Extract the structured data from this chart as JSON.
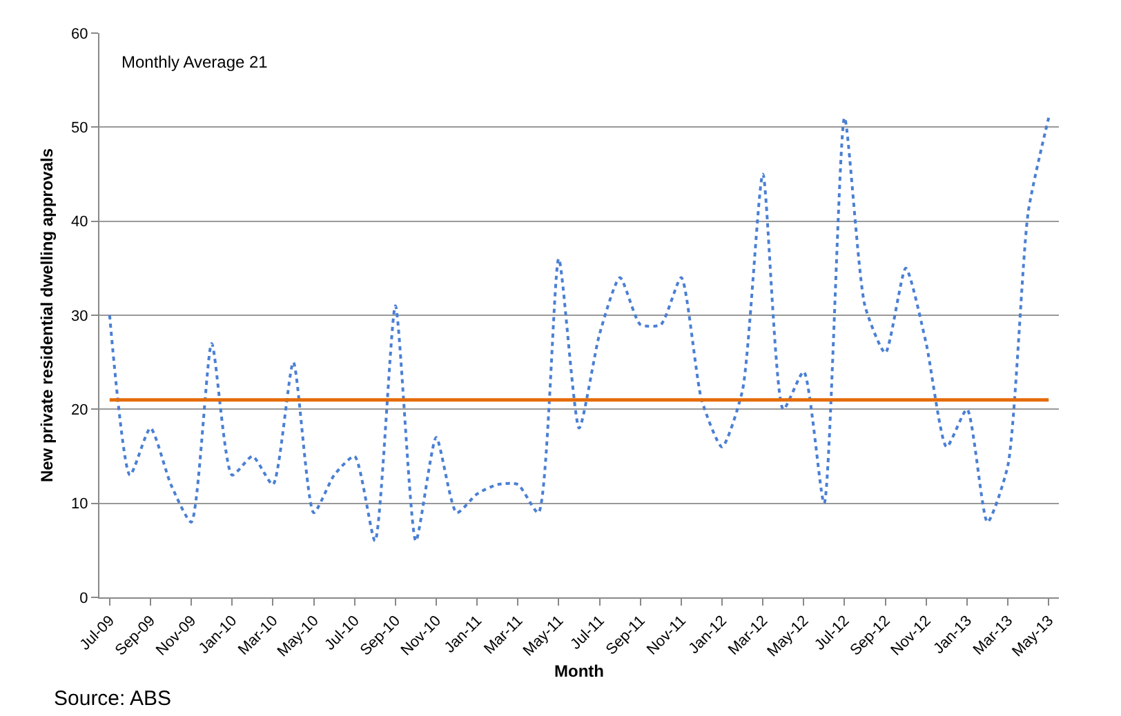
{
  "chart_data": {
    "type": "line",
    "xlabel": "Month",
    "ylabel": "New private residential dwelling approvals",
    "categories": [
      "Jul-09",
      null,
      "Sep-09",
      null,
      "Nov-09",
      null,
      "Jan-10",
      null,
      "Mar-10",
      null,
      "May-10",
      null,
      "Jul-10",
      null,
      "Sep-10",
      null,
      "Nov-10",
      null,
      "Jan-11",
      null,
      "Mar-11",
      null,
      "May-11",
      null,
      "Jul-11",
      null,
      "Sep-11",
      null,
      "Nov-11",
      null,
      "Jan-12",
      null,
      "Mar-12",
      null,
      "May-12",
      null,
      "Jul-12",
      null,
      "Sep-12",
      null,
      "Nov-12",
      null,
      "Jan-13",
      null,
      "Mar-13",
      null,
      "May-13"
    ],
    "series": [
      {
        "color": "#4a7fd4",
        "values": [
          30,
          13,
          18,
          12,
          8,
          27,
          13,
          15,
          12,
          25,
          9,
          13,
          15,
          6,
          31,
          6,
          17,
          9,
          11,
          12,
          12,
          9,
          36,
          18,
          28,
          34,
          29,
          29,
          34,
          21,
          16,
          22,
          45,
          20,
          24,
          10,
          51,
          31,
          26,
          35,
          27,
          16,
          20,
          8,
          14,
          41,
          51
        ]
      }
    ],
    "line_style": "dotted",
    "marker": "none",
    "ylim": [
      0,
      60
    ],
    "yticks": [
      0,
      10,
      20,
      30,
      40,
      50,
      60
    ],
    "grid": "y",
    "ref_lines": [
      {
        "axis": "y",
        "value": 21,
        "color": "#e46c0a",
        "line_style": "solid"
      }
    ],
    "annotations": [
      "Monthly Average 21",
      "Source: ABS"
    ]
  }
}
